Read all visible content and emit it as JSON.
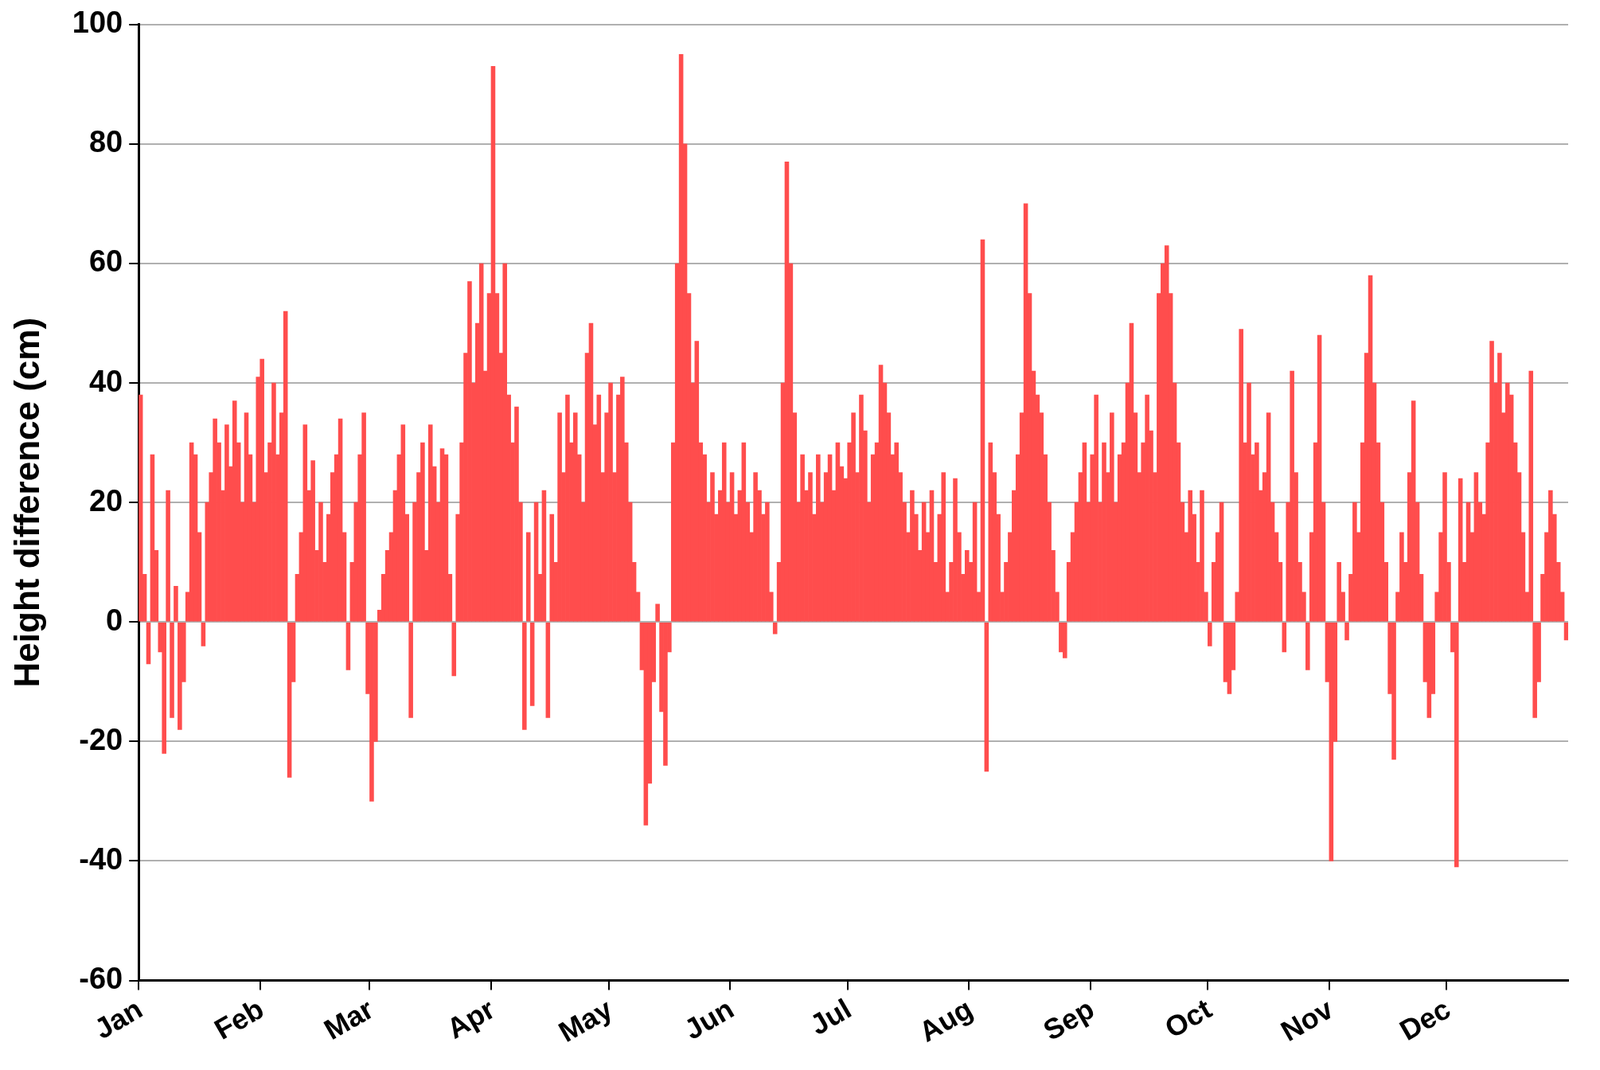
{
  "chart_data": {
    "type": "bar",
    "y_label": "Height difference (cm)",
    "categories": [
      "Jan",
      null,
      null,
      null,
      null,
      null,
      null,
      null,
      null,
      null,
      null,
      null,
      null,
      null,
      null,
      null,
      null,
      null,
      null,
      null,
      null,
      null,
      null,
      null,
      null,
      null,
      null,
      null,
      null,
      null,
      null,
      "Feb",
      null,
      null,
      null,
      null,
      null,
      null,
      null,
      null,
      null,
      null,
      null,
      null,
      null,
      null,
      null,
      null,
      null,
      null,
      null,
      null,
      null,
      null,
      null,
      null,
      null,
      null,
      null,
      "Mar",
      null,
      null,
      null,
      null,
      null,
      null,
      null,
      null,
      null,
      null,
      null,
      null,
      null,
      null,
      null,
      null,
      null,
      null,
      null,
      null,
      null,
      null,
      null,
      null,
      null,
      null,
      null,
      null,
      null,
      null,
      "Apr",
      null,
      null,
      null,
      null,
      null,
      null,
      null,
      null,
      null,
      null,
      null,
      null,
      null,
      null,
      null,
      null,
      null,
      null,
      null,
      null,
      null,
      null,
      null,
      null,
      null,
      null,
      null,
      null,
      null,
      "May",
      null,
      null,
      null,
      null,
      null,
      null,
      null,
      null,
      null,
      null,
      null,
      null,
      null,
      null,
      null,
      null,
      null,
      null,
      null,
      null,
      null,
      null,
      null,
      null,
      null,
      null,
      null,
      null,
      null,
      null,
      "Jun",
      null,
      null,
      null,
      null,
      null,
      null,
      null,
      null,
      null,
      null,
      null,
      null,
      null,
      null,
      null,
      null,
      null,
      null,
      null,
      null,
      null,
      null,
      null,
      null,
      null,
      null,
      null,
      null,
      null,
      "Jul",
      null,
      null,
      null,
      null,
      null,
      null,
      null,
      null,
      null,
      null,
      null,
      null,
      null,
      null,
      null,
      null,
      null,
      null,
      null,
      null,
      null,
      null,
      null,
      null,
      null,
      null,
      null,
      null,
      null,
      null,
      "Aug",
      null,
      null,
      null,
      null,
      null,
      null,
      null,
      null,
      null,
      null,
      null,
      null,
      null,
      null,
      null,
      null,
      null,
      null,
      null,
      null,
      null,
      null,
      null,
      null,
      null,
      null,
      null,
      null,
      null,
      null,
      "Sep",
      null,
      null,
      null,
      null,
      null,
      null,
      null,
      null,
      null,
      null,
      null,
      null,
      null,
      null,
      null,
      null,
      null,
      null,
      null,
      null,
      null,
      null,
      null,
      null,
      null,
      null,
      null,
      null,
      null,
      "Oct",
      null,
      null,
      null,
      null,
      null,
      null,
      null,
      null,
      null,
      null,
      null,
      null,
      null,
      null,
      null,
      null,
      null,
      null,
      null,
      null,
      null,
      null,
      null,
      null,
      null,
      null,
      null,
      null,
      null,
      null,
      "Nov",
      null,
      null,
      null,
      null,
      null,
      null,
      null,
      null,
      null,
      null,
      null,
      null,
      null,
      null,
      null,
      null,
      null,
      null,
      null,
      null,
      null,
      null,
      null,
      null,
      null,
      null,
      null,
      null,
      null,
      "Dec",
      null,
      null,
      null,
      null,
      null,
      null,
      null,
      null,
      null,
      null,
      null,
      null,
      null,
      null,
      null,
      null,
      null,
      null,
      null,
      null,
      null,
      null,
      null,
      null,
      null,
      null,
      null,
      null,
      null,
      null
    ],
    "values": [
      38,
      8,
      -7,
      28,
      12,
      -5,
      -22,
      22,
      -16,
      6,
      -18,
      -10,
      5,
      30,
      28,
      15,
      -4,
      20,
      25,
      34,
      30,
      22,
      33,
      26,
      37,
      30,
      20,
      35,
      28,
      20,
      41,
      44,
      25,
      30,
      40,
      28,
      35,
      52,
      -26,
      -10,
      8,
      15,
      33,
      22,
      27,
      12,
      20,
      10,
      18,
      25,
      28,
      34,
      15,
      -8,
      10,
      20,
      28,
      35,
      -12,
      -30,
      -20,
      2,
      8,
      12,
      15,
      22,
      28,
      33,
      18,
      -16,
      20,
      25,
      30,
      12,
      33,
      26,
      20,
      29,
      28,
      8,
      -9,
      18,
      30,
      45,
      57,
      40,
      50,
      60,
      42,
      55,
      93,
      55,
      45,
      60,
      38,
      30,
      36,
      20,
      -18,
      15,
      -14,
      20,
      8,
      22,
      -16,
      18,
      10,
      35,
      25,
      38,
      30,
      35,
      28,
      20,
      45,
      50,
      33,
      38,
      25,
      35,
      40,
      25,
      38,
      41,
      30,
      20,
      10,
      5,
      -8,
      -34,
      -27,
      -10,
      3,
      -15,
      -24,
      -5,
      30,
      60,
      95,
      80,
      55,
      40,
      47,
      30,
      28,
      20,
      25,
      18,
      22,
      30,
      20,
      25,
      18,
      22,
      30,
      20,
      15,
      25,
      22,
      18,
      20,
      5,
      -2,
      10,
      40,
      77,
      60,
      35,
      20,
      28,
      22,
      25,
      18,
      28,
      20,
      25,
      28,
      22,
      30,
      26,
      24,
      30,
      35,
      25,
      38,
      32,
      20,
      28,
      30,
      43,
      40,
      35,
      28,
      30,
      25,
      20,
      15,
      22,
      18,
      12,
      20,
      15,
      22,
      10,
      18,
      25,
      5,
      10,
      24,
      15,
      8,
      12,
      10,
      20,
      5,
      64,
      -25,
      30,
      25,
      18,
      5,
      10,
      15,
      22,
      28,
      35,
      70,
      55,
      42,
      38,
      35,
      28,
      20,
      12,
      5,
      -5,
      -6,
      10,
      15,
      20,
      25,
      30,
      20,
      28,
      38,
      20,
      30,
      25,
      35,
      20,
      28,
      30,
      40,
      50,
      35,
      25,
      30,
      38,
      32,
      25,
      55,
      60,
      63,
      55,
      40,
      30,
      20,
      15,
      22,
      18,
      10,
      22,
      5,
      -4,
      10,
      15,
      20,
      -10,
      -12,
      -8,
      5,
      49,
      30,
      40,
      28,
      30,
      22,
      25,
      35,
      20,
      15,
      10,
      -5,
      20,
      42,
      25,
      10,
      5,
      -8,
      15,
      30,
      48,
      20,
      -10,
      -40,
      -20,
      10,
      5,
      -3,
      8,
      20,
      15,
      30,
      45,
      58,
      40,
      30,
      20,
      10,
      -12,
      -23,
      5,
      15,
      10,
      25,
      37,
      20,
      8,
      -10,
      -16,
      -12,
      5,
      15,
      25,
      10,
      -5,
      -41,
      24,
      10,
      20,
      15,
      25,
      20,
      18,
      30,
      47,
      40,
      45,
      35,
      40,
      38,
      30,
      25,
      15,
      5,
      42,
      -16,
      -10,
      8,
      15,
      22,
      18,
      10,
      5,
      -3
    ],
    "color": "#ff4d4d",
    "ylim": [
      -60,
      100
    ],
    "yticks": [
      -60,
      -40,
      -20,
      0,
      20,
      40,
      60,
      80,
      100
    ],
    "grid": true
  }
}
